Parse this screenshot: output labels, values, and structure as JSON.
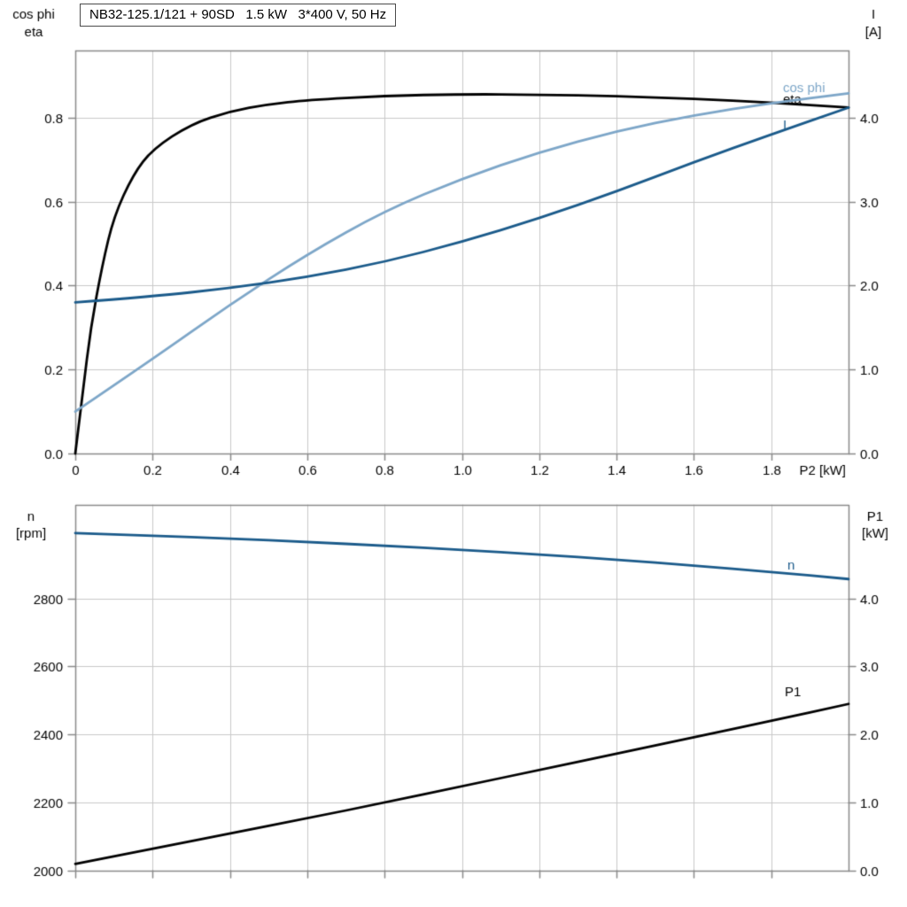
{
  "title_box": {
    "text": "NB32-125.1/121 + 90SD   1.5 kW   3*400 V, 50 Hz"
  },
  "colors": {
    "eta": "#000000",
    "cos_phi": "#7da6c8",
    "current": "#1a5a8a",
    "n": "#1a5a8a",
    "p1": "#000000",
    "grid": "#c9c9c9",
    "frame": "#8a8a8a",
    "text": "#000000"
  },
  "chart_data": [
    {
      "type": "line",
      "title": "NB32-125.1/121 + 90SD   1.5 kW   3*400 V, 50 Hz",
      "grid": true,
      "x_axis": {
        "label": "P2 [kW]",
        "range": [
          0,
          2.0
        ],
        "ticks": [
          0,
          0.2,
          0.4,
          0.6,
          0.8,
          1.0,
          1.2,
          1.4,
          1.6,
          1.8
        ],
        "tick_labels": [
          "0",
          "0.2",
          "0.4",
          "0.6",
          "0.8",
          "1.0",
          "1.2",
          "1.4",
          "1.6",
          "1.8"
        ],
        "show_tick_labels": true
      },
      "y_left": {
        "title_lines": [
          "cos phi",
          "eta"
        ],
        "range": [
          0,
          0.96
        ],
        "ticks": [
          0,
          0.2,
          0.4,
          0.6,
          0.8
        ],
        "tick_labels": [
          "0.0",
          "0.2",
          "0.4",
          "0.6",
          "0.8"
        ]
      },
      "y_right": {
        "title_lines": [
          "I",
          "[A]"
        ],
        "range": [
          0,
          4.8
        ],
        "ticks": [
          0,
          1.0,
          2.0,
          3.0,
          4.0
        ],
        "tick_labels": [
          "0.0",
          "1.0",
          "2.0",
          "3.0",
          "4.0"
        ]
      },
      "series": [
        {
          "name": "eta",
          "label": "eta",
          "axis": "left",
          "color_key": "eta",
          "x": [
            0,
            0.02,
            0.04,
            0.07,
            0.1,
            0.15,
            0.2,
            0.3,
            0.4,
            0.5,
            0.6,
            0.8,
            1.0,
            1.2,
            1.4,
            1.6,
            1.8,
            2.0
          ],
          "values": [
            0,
            0.15,
            0.3,
            0.45,
            0.565,
            0.665,
            0.725,
            0.785,
            0.815,
            0.832,
            0.842,
            0.852,
            0.856,
            0.855,
            0.851,
            0.845,
            0.836,
            0.824
          ]
        },
        {
          "name": "cos phi",
          "label": "cos phi",
          "axis": "left",
          "color_key": "cos_phi",
          "x": [
            0,
            0.2,
            0.4,
            0.6,
            0.8,
            1.0,
            1.2,
            1.4,
            1.6,
            1.8,
            2.0
          ],
          "values": [
            0.1,
            0.225,
            0.355,
            0.475,
            0.578,
            0.655,
            0.718,
            0.768,
            0.806,
            0.835,
            0.858
          ]
        },
        {
          "name": "I",
          "label": "I",
          "axis": "right",
          "color_key": "current",
          "x": [
            0,
            0.2,
            0.4,
            0.6,
            0.8,
            1.0,
            1.2,
            1.4,
            1.6,
            1.8,
            2.0
          ],
          "values": [
            1.8,
            1.87,
            1.97,
            2.1,
            2.28,
            2.52,
            2.8,
            3.12,
            3.47,
            3.8,
            4.12
          ]
        }
      ]
    },
    {
      "type": "line",
      "title": "",
      "grid": true,
      "x_axis": {
        "label": "",
        "range": [
          0,
          2.0
        ],
        "ticks": [
          0,
          0.2,
          0.4,
          0.6,
          0.8,
          1.0,
          1.2,
          1.4,
          1.6,
          1.8
        ],
        "tick_labels": [],
        "show_tick_labels": false
      },
      "y_left": {
        "title_lines": [
          "n",
          "[rpm]"
        ],
        "range": [
          2000,
          3075
        ],
        "ticks": [
          2000,
          2200,
          2400,
          2600,
          2800
        ],
        "tick_labels": [
          "2000",
          "2200",
          "2400",
          "2600",
          "2800"
        ]
      },
      "y_right": {
        "title_lines": [
          "P1",
          "[kW]"
        ],
        "range": [
          0,
          5.375
        ],
        "ticks": [
          0,
          1.0,
          2.0,
          3.0,
          4.0
        ],
        "tick_labels": [
          "0.0",
          "1.0",
          "2.0",
          "3.0",
          "4.0"
        ]
      },
      "series": [
        {
          "name": "n",
          "label": "n",
          "axis": "left",
          "color_key": "n",
          "x": [
            0,
            0.2,
            0.4,
            0.6,
            0.8,
            1.0,
            1.2,
            1.4,
            1.6,
            1.8,
            2.0
          ],
          "values": [
            2992,
            2985,
            2976,
            2966,
            2955,
            2943,
            2929,
            2914,
            2897,
            2878,
            2857
          ]
        },
        {
          "name": "P1",
          "label": "P1",
          "axis": "right",
          "color_key": "p1",
          "x": [
            0,
            0.2,
            0.4,
            0.6,
            0.8,
            1.0,
            1.2,
            1.4,
            1.6,
            1.8,
            2.0
          ],
          "values": [
            0.1,
            0.32,
            0.55,
            0.77,
            1.0,
            1.24,
            1.48,
            1.72,
            1.96,
            2.2,
            2.45
          ]
        }
      ]
    }
  ]
}
